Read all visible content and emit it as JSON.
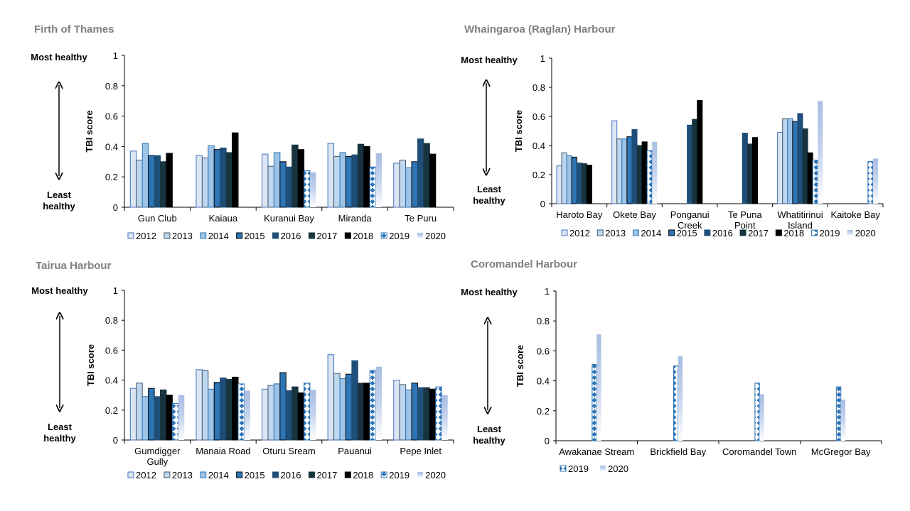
{
  "labels": {
    "most": "Most healthy",
    "least": "Least healthy"
  },
  "chart_data": [
    {
      "type": "bar",
      "title": "Firth of Thames",
      "ylabel": "TBI score",
      "ylim": [
        0,
        1
      ],
      "yticks": [
        "0",
        "0.2",
        "0.4",
        "0.6",
        "0.8",
        "1"
      ],
      "legend": "bottom",
      "categories": [
        "Gun Club",
        "Kaiaua",
        "Kuranui Bay",
        "Miranda",
        "Te Puru"
      ],
      "series": [
        {
          "name": "2012",
          "values": [
            0.37,
            0.34,
            0.35,
            0.42,
            0.29
          ]
        },
        {
          "name": "2013",
          "values": [
            0.31,
            0.325,
            0.27,
            0.335,
            0.31
          ]
        },
        {
          "name": "2014",
          "values": [
            0.42,
            0.405,
            0.36,
            0.36,
            0.26
          ]
        },
        {
          "name": "2015",
          "values": [
            0.34,
            0.38,
            0.3,
            0.335,
            0.3
          ]
        },
        {
          "name": "2016",
          "values": [
            0.34,
            0.39,
            0.265,
            0.345,
            0.45
          ]
        },
        {
          "name": "2017",
          "values": [
            0.3,
            0.36,
            0.41,
            0.415,
            0.42
          ]
        },
        {
          "name": "2018",
          "values": [
            0.355,
            0.49,
            0.38,
            0.4,
            0.35
          ]
        },
        {
          "name": "2019",
          "values": [
            null,
            null,
            0.24,
            0.265,
            null
          ]
        },
        {
          "name": "2020",
          "values": [
            null,
            null,
            0.23,
            0.355,
            null
          ]
        }
      ]
    },
    {
      "type": "bar",
      "title": "Whaingaroa (Raglan) Harbour",
      "ylabel": "TBI score",
      "ylim": [
        0,
        1
      ],
      "yticks": [
        "0",
        "0.2",
        "0.4",
        "0.6",
        "0.8",
        "1"
      ],
      "legend": "bottom",
      "categories": [
        "Haroto Bay",
        "Okete Bay",
        "Ponganui Creek",
        "Te Puna Point",
        "Whatitirinui Island",
        "Kaitoke Bay"
      ],
      "series": [
        {
          "name": "2012",
          "values": [
            0.26,
            0.57,
            null,
            null,
            0.49,
            null
          ]
        },
        {
          "name": "2013",
          "values": [
            0.35,
            0.445,
            null,
            null,
            0.585,
            null
          ]
        },
        {
          "name": "2014",
          "values": [
            0.33,
            0.445,
            null,
            null,
            0.585,
            null
          ]
        },
        {
          "name": "2015",
          "values": [
            0.32,
            0.46,
            null,
            null,
            0.565,
            null
          ]
        },
        {
          "name": "2016",
          "values": [
            0.28,
            0.51,
            0.54,
            0.485,
            0.62,
            null
          ]
        },
        {
          "name": "2017",
          "values": [
            0.275,
            0.4,
            0.58,
            0.41,
            0.515,
            null
          ]
        },
        {
          "name": "2018",
          "values": [
            0.265,
            0.425,
            0.71,
            0.455,
            0.35,
            null
          ]
        },
        {
          "name": "2019",
          "values": [
            null,
            0.365,
            null,
            null,
            0.3,
            0.29
          ]
        },
        {
          "name": "2020",
          "values": [
            null,
            0.425,
            null,
            null,
            0.705,
            0.31
          ]
        }
      ]
    },
    {
      "type": "bar",
      "title": "Tairua Harbour",
      "ylabel": "TBI score",
      "ylim": [
        0,
        1
      ],
      "yticks": [
        "0",
        "0.2",
        "0.4",
        "0.6",
        "0.8",
        "1"
      ],
      "legend": "bottom",
      "categories": [
        "Gumdigger Gully",
        "Manaia Road",
        "Oturu Sream",
        "Pauanui",
        "Pepe Inlet"
      ],
      "series": [
        {
          "name": "2012",
          "values": [
            0.345,
            0.47,
            0.34,
            0.57,
            0.4
          ]
        },
        {
          "name": "2013",
          "values": [
            0.38,
            0.465,
            0.365,
            0.445,
            0.37
          ]
        },
        {
          "name": "2014",
          "values": [
            0.29,
            0.34,
            0.375,
            0.41,
            0.335
          ]
        },
        {
          "name": "2015",
          "values": [
            0.345,
            0.385,
            0.45,
            0.44,
            0.38
          ]
        },
        {
          "name": "2016",
          "values": [
            0.29,
            0.415,
            0.33,
            0.53,
            0.35
          ]
        },
        {
          "name": "2017",
          "values": [
            0.335,
            0.405,
            0.355,
            0.38,
            0.35
          ]
        },
        {
          "name": "2018",
          "values": [
            0.3,
            0.42,
            0.315,
            0.38,
            0.34
          ]
        },
        {
          "name": "2019",
          "values": [
            0.245,
            0.375,
            0.38,
            0.465,
            0.355
          ]
        },
        {
          "name": "2020",
          "values": [
            0.3,
            0.33,
            0.335,
            0.49,
            0.3
          ]
        }
      ]
    },
    {
      "type": "bar",
      "title": "Coromandel Harbour",
      "ylabel": "TBI score",
      "ylim": [
        0,
        1
      ],
      "yticks": [
        "0",
        "0.2",
        "0.4",
        "0.6",
        "0.8",
        "1"
      ],
      "legend": "bottom-left",
      "categories": [
        "Awakanae Stream",
        "Brickfield Bay",
        "Coromandel Town",
        "McGregor Bay"
      ],
      "series": [
        {
          "name": "2019",
          "values": [
            0.51,
            0.5,
            0.385,
            0.36
          ]
        },
        {
          "name": "2020",
          "values": [
            0.71,
            0.565,
            0.31,
            0.275
          ]
        }
      ]
    }
  ],
  "series_styles": {
    "2012": {
      "fill": "#dce6f2",
      "stroke": "#4472c4"
    },
    "2013": {
      "fill": "#bdd7ee",
      "stroke": "#44546a"
    },
    "2014": {
      "fill": "#9dc3e6",
      "stroke": "#2e75b6"
    },
    "2015": {
      "fill": "#2e75b6",
      "stroke": "#000000"
    },
    "2016": {
      "fill": "#1f4e79",
      "stroke": "#1f4e79"
    },
    "2017": {
      "fill": "#17343f",
      "stroke": "#17343f"
    },
    "2018": {
      "fill": "#000000",
      "stroke": "#000000"
    },
    "2019": {
      "fill": "pattern",
      "stroke": "#2e75b6"
    },
    "2020": {
      "fill": "gradient",
      "stroke": "none"
    }
  }
}
